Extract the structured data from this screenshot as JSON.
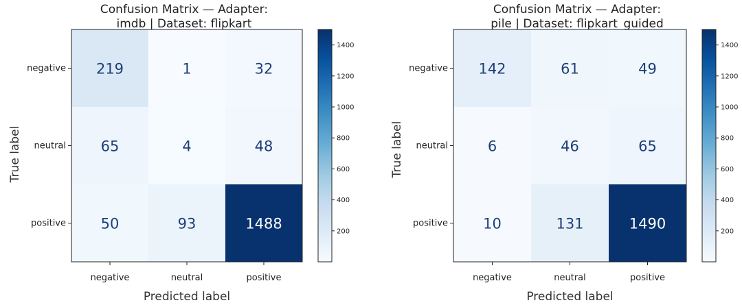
{
  "chart_data": [
    {
      "type": "heatmap",
      "title": "Confusion Matrix — Adapter:\nimdb | Dataset: flipkart",
      "xlabel": "Predicted label",
      "ylabel": "True label",
      "x_categories": [
        "negative",
        "neutral",
        "positive"
      ],
      "y_categories": [
        "negative",
        "neutral",
        "positive"
      ],
      "values": [
        [
          219,
          1,
          32
        ],
        [
          65,
          4,
          48
        ],
        [
          50,
          93,
          1488
        ]
      ],
      "colorbar": {
        "range": [
          0,
          1500
        ],
        "ticks": [
          200,
          400,
          600,
          800,
          1000,
          1200,
          1400
        ],
        "colormap": "Blues"
      }
    },
    {
      "type": "heatmap",
      "title": "Confusion Matrix — Adapter:\npile | Dataset: flipkart_guided",
      "xlabel": "Predicted label",
      "ylabel": "True label",
      "x_categories": [
        "negative",
        "neutral",
        "positive"
      ],
      "y_categories": [
        "negative",
        "neutral",
        "positive"
      ],
      "values": [
        [
          142,
          61,
          49
        ],
        [
          6,
          46,
          65
        ],
        [
          10,
          131,
          1490
        ]
      ],
      "colorbar": {
        "range": [
          0,
          1500
        ],
        "ticks": [
          200,
          400,
          600,
          800,
          1000,
          1200,
          1400
        ],
        "colormap": "Blues"
      }
    }
  ]
}
